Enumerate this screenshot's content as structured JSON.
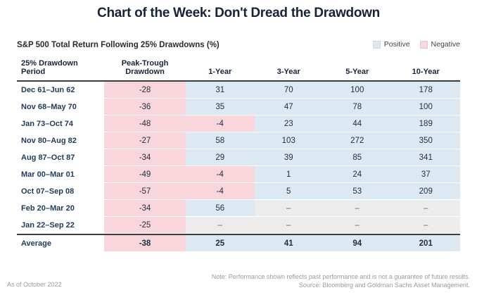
{
  "header": {
    "title": "Chart of the Week: Don't Dread the Drawdown",
    "subtitle": "S&P 500 Total Return Following 25% Drawdowns (%)"
  },
  "legend": [
    {
      "name": "positive",
      "label": "Positive",
      "color": "#dce9f3"
    },
    {
      "name": "negative",
      "label": "Negative",
      "color": "#f8d6db"
    }
  ],
  "chart_data": {
    "type": "table",
    "title": "Chart of the Week: Don't Dread the Drawdown",
    "subtitle": "S&P 500 Total Return Following 25% Drawdowns (%)",
    "legend_position": "top-right",
    "columns": [
      "25% Drawdown Period",
      "Peak-Trough Drawdown",
      "1-Year",
      "3-Year",
      "5-Year",
      "10-Year"
    ],
    "na_placeholder": "–",
    "rows": [
      [
        "Dec 61–Jun 62",
        -28,
        31,
        70,
        100,
        178
      ],
      [
        "Nov 68–May 70",
        -36,
        35,
        47,
        78,
        100
      ],
      [
        "Jan 73–Oct 74",
        -48,
        -4,
        23,
        44,
        189
      ],
      [
        "Nov 80–Aug 82",
        -27,
        58,
        103,
        272,
        350
      ],
      [
        "Aug 87–Oct 87",
        -34,
        29,
        39,
        85,
        341
      ],
      [
        "Mar 00–Mar 01",
        -49,
        -4,
        1,
        24,
        37
      ],
      [
        "Oct 07–Sep 08",
        -57,
        -4,
        5,
        53,
        209
      ],
      [
        "Feb 20–Mar 20",
        -34,
        56,
        "–",
        "–",
        "–"
      ],
      [
        "Jan 22–Sep 22",
        -25,
        "–",
        "–",
        "–",
        "–"
      ]
    ],
    "average_row": [
      "Average",
      -38,
      25,
      41,
      94,
      201
    ]
  },
  "footer": {
    "as_of": "As of October 2022",
    "note": "Note: Performance shown reflects past performance and is not a guarantee of future results.",
    "source": "Source: Bloomberg and Goldman Sachs Asset Management."
  }
}
